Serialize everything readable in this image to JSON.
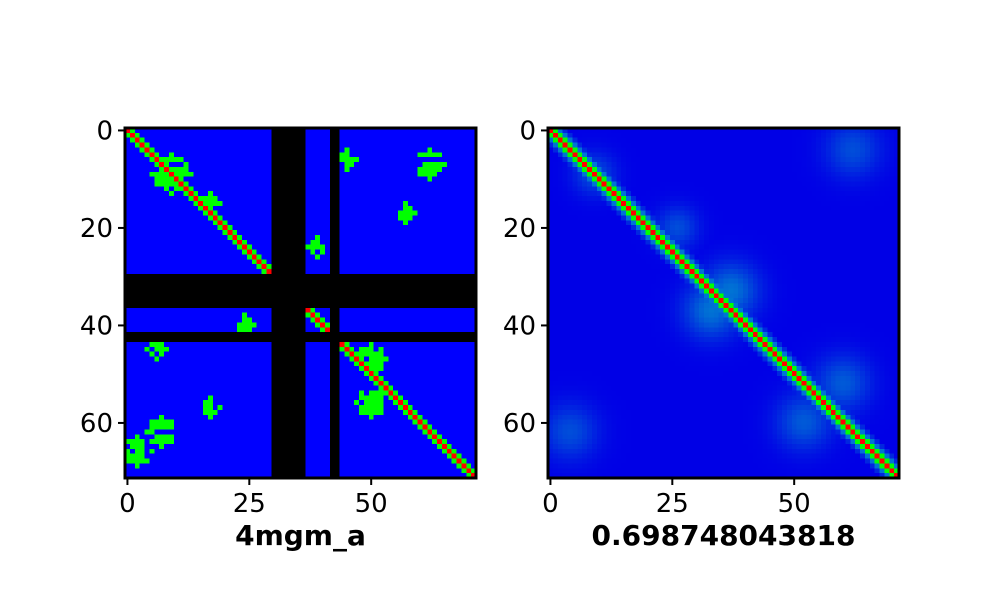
{
  "chart_data": [
    {
      "type": "heatmap",
      "title": "",
      "xlabel": "4mgm_a",
      "ylabel": "",
      "matrix_size": 72,
      "xlim": [
        0,
        71
      ],
      "ylim": [
        71,
        0
      ],
      "x_ticks": [
        0,
        25,
        50
      ],
      "y_ticks": [
        0,
        20,
        40,
        60
      ],
      "colors": {
        "background": "#0000ff",
        "contact": "#00ff00",
        "diagonal": "#ff0000",
        "masked": "#000000"
      },
      "masked_indices": [
        [
          30,
          36
        ],
        [
          42,
          43
        ]
      ],
      "contact_clusters": [
        {
          "center": [
            9,
            9
          ],
          "spread": 4
        },
        {
          "center": [
            15,
            17
          ],
          "spread": 2
        },
        {
          "center": [
            24,
            39
          ],
          "spread": 2
        },
        {
          "center": [
            40,
            24
          ],
          "spread": 2
        },
        {
          "center": [
            7,
            62
          ],
          "spread": 3
        },
        {
          "center": [
            62,
            7
          ],
          "spread": 3
        },
        {
          "center": [
            6,
            45
          ],
          "spread": 2
        },
        {
          "center": [
            45,
            6
          ],
          "spread": 2
        },
        {
          "center": [
            17,
            57
          ],
          "spread": 2
        },
        {
          "center": [
            57,
            17
          ],
          "spread": 2
        },
        {
          "center": [
            47,
            50
          ],
          "spread": 3
        },
        {
          "center": [
            56,
            50
          ],
          "spread": 3
        },
        {
          "center": [
            66,
            2
          ],
          "spread": 3
        }
      ]
    },
    {
      "type": "heatmap",
      "title": "",
      "xlabel": "0.698748043818",
      "ylabel": "",
      "matrix_size": 72,
      "xlim": [
        0,
        71
      ],
      "ylim": [
        71,
        0
      ],
      "x_ticks": [
        0,
        25,
        50
      ],
      "y_ticks": [
        0,
        20,
        40,
        60
      ],
      "colors": {
        "background": "#0000ff",
        "contact": "#00ff00",
        "diagonal": "#ff0000"
      },
      "faint_features": [
        {
          "center": [
            33,
            37
          ],
          "spread": 4,
          "intensity": 0.45
        },
        {
          "center": [
            37,
            33
          ],
          "spread": 4,
          "intensity": 0.45
        },
        {
          "center": [
            9,
            9
          ],
          "spread": 3,
          "intensity": 0.3
        },
        {
          "center": [
            4,
            62
          ],
          "spread": 4,
          "intensity": 0.3
        },
        {
          "center": [
            62,
            4
          ],
          "spread": 4,
          "intensity": 0.3
        },
        {
          "center": [
            60,
            52
          ],
          "spread": 4,
          "intensity": 0.35
        },
        {
          "center": [
            52,
            60
          ],
          "spread": 4,
          "intensity": 0.35
        },
        {
          "center": [
            20,
            26
          ],
          "spread": 3,
          "intensity": 0.3
        }
      ]
    }
  ]
}
